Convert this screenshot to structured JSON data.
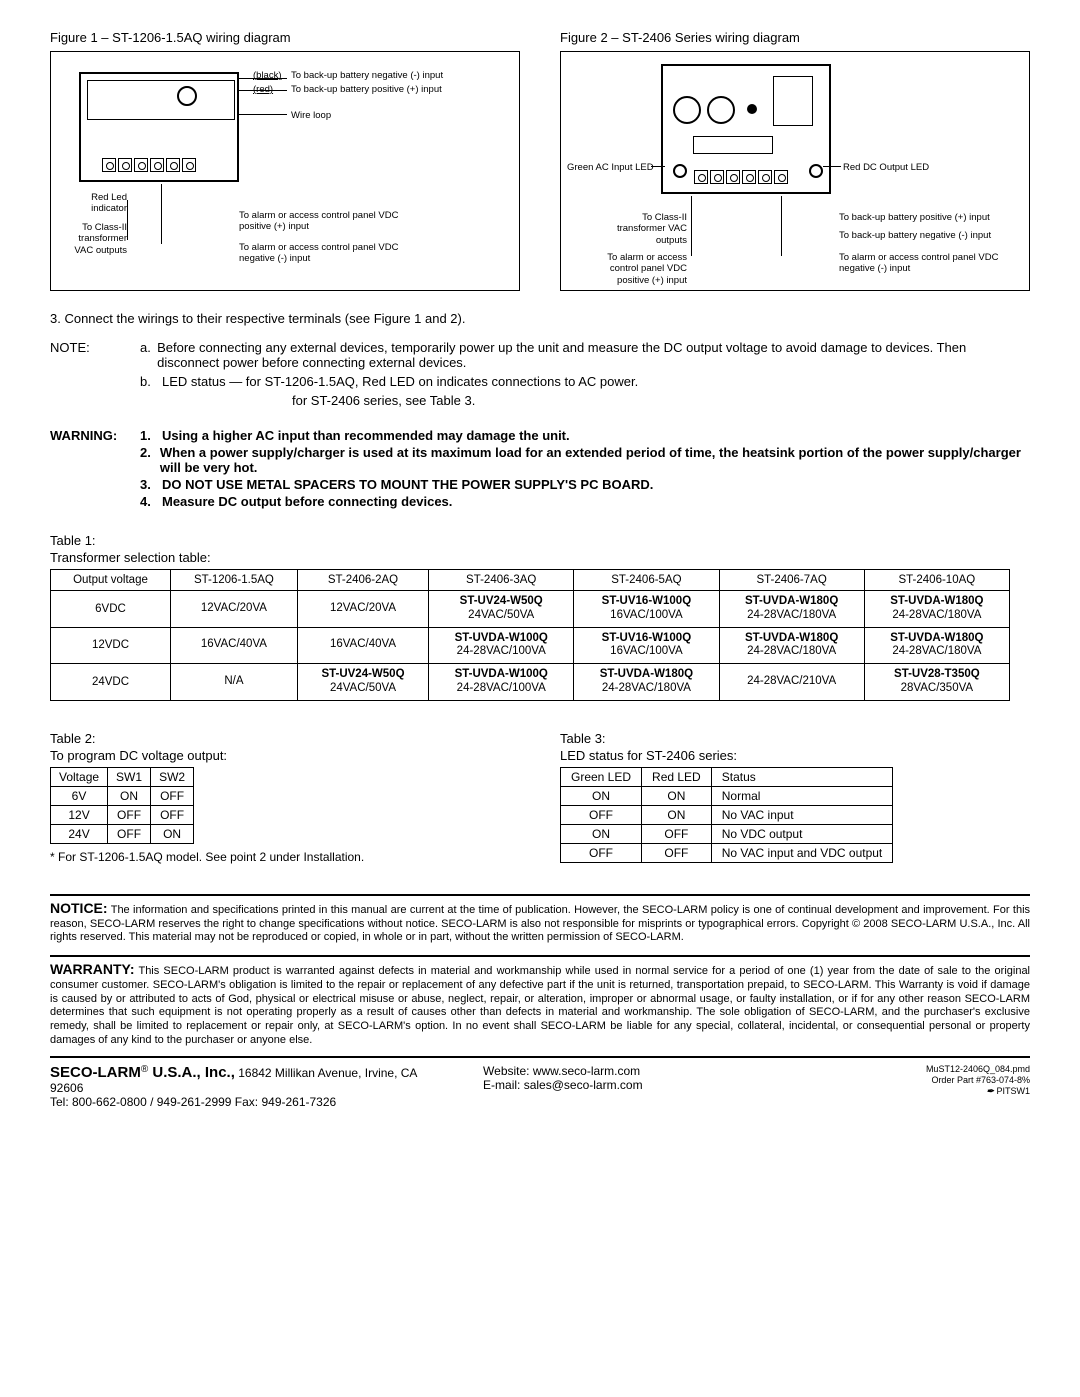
{
  "fig1": {
    "title": "Figure 1 – ST-1206-1.5AQ wiring diagram",
    "callouts": {
      "black": "(black)",
      "red": "(red)",
      "backup_neg": "To back-up battery negative (-) input",
      "backup_pos": "To back-up battery positive (+) input",
      "wire_loop": "Wire loop",
      "red_led": "Red Led indicator",
      "class2": "To Class-II transformer VAC outputs",
      "alarm_pos": "To alarm or access control panel VDC positive (+) input",
      "alarm_neg": "To alarm or access control panel VDC negative (-) input"
    }
  },
  "fig2": {
    "title": "Figure 2 – ST-2406 Series wiring diagram",
    "callouts": {
      "green_led": "Green AC Input LED",
      "red_led": "Red DC Output LED",
      "class2": "To Class-II transformer VAC outputs",
      "alarm_pos": "To alarm or access control panel VDC positive (+) input",
      "backup_pos": "To back-up battery positive (+) input",
      "backup_neg": "To back-up battery negative (-) input",
      "alarm_neg": "To alarm or access control panel VDC negative (-) input"
    }
  },
  "step3": "3.  Connect the wirings to their respective terminals (see Figure 1 and 2).",
  "note": {
    "label": "NOTE:",
    "a": "Before connecting any external devices, temporarily power up the unit and measure the DC output voltage to avoid damage to devices. Then disconnect power before connecting external devices.",
    "b1": "LED status —  for ST-1206-1.5AQ, Red LED on indicates connections to AC power.",
    "b2": "for ST-2406 series, see Table 3."
  },
  "warning": {
    "label": "WARNING:",
    "w1": "Using a higher AC input than recommended may damage the unit.",
    "w2": "When a power supply/charger is used at its maximum load for an extended period of time, the heatsink portion of the power supply/charger will be very hot.",
    "w3": "DO NOT USE METAL SPACERS TO MOUNT THE POWER SUPPLY'S PC BOARD.",
    "w4": "Measure DC output before connecting devices."
  },
  "table1": {
    "title1": "Table 1:",
    "title2": "Transformer selection table:",
    "headers": [
      "Output voltage",
      "ST-1206-1.5AQ",
      "ST-2406-2AQ",
      "ST-2406-3AQ",
      "ST-2406-5AQ",
      "ST-2406-7AQ",
      "ST-2406-10AQ"
    ],
    "rows": [
      {
        "v": "6VDC",
        "c": [
          {
            "a": "12VAC/20VA"
          },
          {
            "a": "12VAC/20VA"
          },
          {
            "a": "ST-UV24-W50Q",
            "b": "24VAC/50VA"
          },
          {
            "a": "ST-UV16-W100Q",
            "b": "16VAC/100VA"
          },
          {
            "a": "ST-UVDA-W180Q",
            "b": "24-28VAC/180VA"
          },
          {
            "a": "ST-UVDA-W180Q",
            "b": "24-28VAC/180VA"
          }
        ]
      },
      {
        "v": "12VDC",
        "c": [
          {
            "a": "16VAC/40VA"
          },
          {
            "a": "16VAC/40VA"
          },
          {
            "a": "ST-UVDA-W100Q",
            "b": "24-28VAC/100VA"
          },
          {
            "a": "ST-UV16-W100Q",
            "b": "16VAC/100VA"
          },
          {
            "a": "ST-UVDA-W180Q",
            "b": "24-28VAC/180VA"
          },
          {
            "a": "ST-UVDA-W180Q",
            "b": "24-28VAC/180VA"
          }
        ]
      },
      {
        "v": "24VDC",
        "c": [
          {
            "a": "N/A"
          },
          {
            "a": "ST-UV24-W50Q",
            "b": "24VAC/50VA"
          },
          {
            "a": "ST-UVDA-W100Q",
            "b": "24-28VAC/100VA"
          },
          {
            "a": "ST-UVDA-W180Q",
            "b": "24-28VAC/180VA"
          },
          {
            "a": "24-28VAC/210VA"
          },
          {
            "a": "ST-UV28-T350Q",
            "b": "28VAC/350VA"
          }
        ]
      }
    ]
  },
  "table2": {
    "title1": "Table 2:",
    "title2": "To program DC voltage output:",
    "headers": [
      "Voltage",
      "SW1",
      "SW2"
    ],
    "rows": [
      [
        "6V",
        "ON",
        "OFF"
      ],
      [
        "12V",
        "OFF",
        "OFF"
      ],
      [
        "24V",
        "OFF",
        "ON"
      ]
    ],
    "footnote": "* For ST-1206-1.5AQ model. See point 2 under Installation."
  },
  "table3": {
    "title1": "Table 3:",
    "title2": "LED status for ST-2406 series:",
    "headers": [
      "Green LED",
      "Red LED",
      "Status"
    ],
    "rows": [
      [
        "ON",
        "ON",
        "Normal"
      ],
      [
        "OFF",
        "ON",
        "No VAC input"
      ],
      [
        "ON",
        "OFF",
        "No VDC output"
      ],
      [
        "OFF",
        "OFF",
        "No VAC input and VDC output"
      ]
    ]
  },
  "notice": {
    "label": "NOTICE:",
    "text": "The information and specifications printed in this manual are current at the time of publication.  However, the SECO-LARM policy is one of continual development and improvement.  For this reason, SECO-LARM reserves the right to change specifications without notice.  SECO-LARM is also not responsible for misprints or typographical errors. Copyright © 2008 SECO-LARM U.S.A., Inc.  All rights reserved.  This material may not be reproduced or copied, in whole or in part, without the written permission of SECO-LARM."
  },
  "warranty": {
    "label": "WARRANTY:",
    "text": "This SECO-LARM product is warranted against defects in material and workmanship while used in normal service for a period of one (1) year from the date of sale to the original consumer customer.  SECO-LARM's obligation is limited to the repair or replacement of any defective part if the unit is returned, transportation prepaid, to SECO-LARM. This Warranty is void if damage is caused by or attributed to acts of God, physical or electrical misuse or abuse, neglect, repair, or alteration, improper or abnormal usage, or faulty installation, or if for any other reason SECO-LARM determines that such equipment is not operating properly as a result of causes other than defects in material and workmanship. The sole obligation of SECO-LARM, and the purchaser's exclusive remedy, shall be limited to replacement or repair only, at SECO-LARM's option.  In no event shall SECO-LARM be liable for any special, collateral, incidental, or consequential personal or property damages of any kind to the purchaser or anyone else."
  },
  "footer": {
    "brand": "SECO-LARM",
    "reg": "®",
    "company": " U.S.A., Inc.,",
    "address": " 16842 Millikan Avenue, Irvine, CA  92606",
    "tel": "Tel: 800-662-0800 / 949-261-2999  Fax: 949-261-7326",
    "website": "Website: www.seco-larm.com",
    "email": "E-mail: sales@seco-larm.com",
    "doc": "MuST12-2406Q_084.pmd",
    "part": "Order Part #763-074-8%",
    "pitsw": "PITSW1"
  }
}
